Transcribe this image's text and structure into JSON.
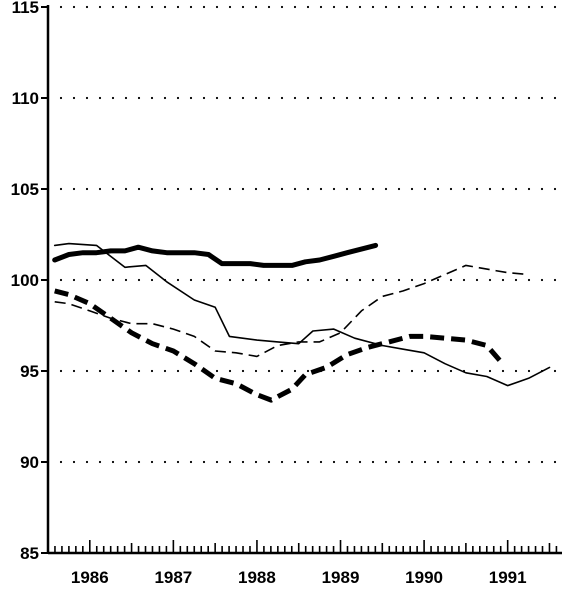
{
  "chart_data": {
    "type": "line",
    "title": "",
    "xlabel": "",
    "ylabel": "",
    "xlim": [
      1985.5,
      1991.65
    ],
    "ylim": [
      85,
      115
    ],
    "grid": "dotted horizontal",
    "legend": "none",
    "y_ticks": [
      85,
      90,
      95,
      100,
      105,
      110,
      115
    ],
    "y_tick_labels": [
      "85",
      "90",
      "95",
      "100",
      "105",
      "110",
      "115"
    ],
    "x_tick_labels": [
      {
        "label": "1986",
        "at": 1986.0
      },
      {
        "label": "1987",
        "at": 1987.0
      },
      {
        "label": "1988",
        "at": 1988.0
      },
      {
        "label": "1989",
        "at": 1989.0
      },
      {
        "label": "1990",
        "at": 1990.0
      },
      {
        "label": "1991",
        "at": 1991.0
      }
    ],
    "series": [
      {
        "style": "thick-solid",
        "x": [
          1985.58,
          1985.75,
          1985.92,
          1986.08,
          1986.25,
          1986.42,
          1986.58,
          1986.75,
          1986.92,
          1987.08,
          1987.25,
          1987.42,
          1987.58,
          1987.75,
          1987.92,
          1988.08,
          1988.25,
          1988.42,
          1988.58,
          1988.75,
          1988.92,
          1989.08,
          1989.25,
          1989.42
        ],
        "y": [
          101.1,
          101.4,
          101.5,
          101.5,
          101.6,
          101.6,
          101.8,
          101.6,
          101.5,
          101.5,
          101.5,
          101.4,
          100.9,
          100.9,
          100.9,
          100.8,
          100.8,
          100.8,
          101.0,
          101.1,
          101.3,
          101.5,
          101.7,
          101.9
        ]
      },
      {
        "style": "thin-solid",
        "x": [
          1985.58,
          1985.75,
          1986.08,
          1986.42,
          1986.67,
          1986.92,
          1987.25,
          1987.5,
          1987.67,
          1988.0,
          1988.25,
          1988.5,
          1988.67,
          1988.92,
          1989.17,
          1989.5,
          1989.75,
          1990.0,
          1990.25,
          1990.5,
          1990.75,
          1991.0,
          1991.25,
          1991.5
        ],
        "y": [
          101.9,
          102.0,
          101.9,
          100.7,
          100.8,
          99.9,
          98.9,
          98.5,
          96.9,
          96.7,
          96.6,
          96.5,
          97.2,
          97.3,
          96.8,
          96.4,
          96.2,
          96.0,
          95.4,
          94.9,
          94.7,
          94.2,
          94.6,
          95.2
        ]
      },
      {
        "style": "thin-dashed",
        "x": [
          1985.58,
          1985.75,
          1986.0,
          1986.25,
          1986.5,
          1986.75,
          1987.0,
          1987.25,
          1987.5,
          1987.75,
          1988.0,
          1988.25,
          1988.5,
          1988.75,
          1989.0,
          1989.25,
          1989.5,
          1989.75,
          1990.0,
          1990.25,
          1990.5,
          1990.75,
          1991.0,
          1991.25
        ],
        "y": [
          98.8,
          98.7,
          98.3,
          97.9,
          97.6,
          97.6,
          97.3,
          96.9,
          96.1,
          96.0,
          95.8,
          96.4,
          96.6,
          96.6,
          97.1,
          98.3,
          99.1,
          99.4,
          99.8,
          100.3,
          100.8,
          100.6,
          100.4,
          100.3
        ]
      },
      {
        "style": "thick-dashed",
        "x": [
          1985.58,
          1985.75,
          1986.0,
          1986.25,
          1986.5,
          1986.75,
          1987.0,
          1987.25,
          1987.5,
          1987.75,
          1988.0,
          1988.17,
          1988.42,
          1988.58,
          1988.83,
          1989.08,
          1989.33,
          1989.58,
          1989.83,
          1990.0,
          1990.25,
          1990.5,
          1990.75,
          1990.92
        ],
        "y": [
          99.4,
          99.2,
          98.7,
          97.9,
          97.1,
          96.5,
          96.1,
          95.4,
          94.6,
          94.3,
          93.7,
          93.4,
          94.0,
          94.8,
          95.2,
          95.9,
          96.3,
          96.6,
          96.9,
          96.9,
          96.8,
          96.7,
          96.4,
          95.5
        ]
      }
    ]
  }
}
